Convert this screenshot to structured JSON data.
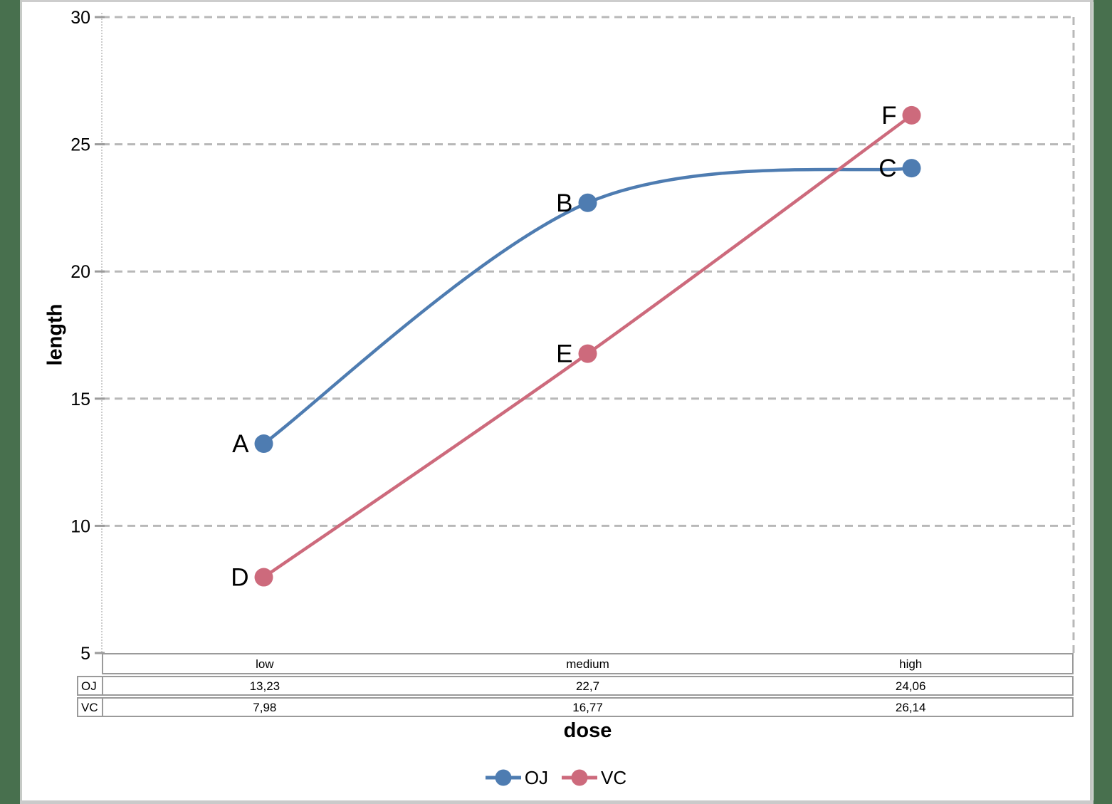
{
  "chart_data": {
    "type": "line",
    "categories": [
      "low",
      "medium",
      "high"
    ],
    "series": [
      {
        "name": "OJ",
        "values": [
          13.23,
          22.7,
          24.06
        ],
        "color": "#4e7cb1",
        "point_labels": [
          "A",
          "B",
          "C"
        ],
        "smooth": true
      },
      {
        "name": "VC",
        "values": [
          7.98,
          16.77,
          26.14
        ],
        "color": "#cd6a7c",
        "point_labels": [
          "D",
          "E",
          "F"
        ],
        "smooth": true
      }
    ],
    "xlabel": "dose",
    "ylabel": "length",
    "ylim": [
      5,
      30
    ],
    "yticks": [
      5,
      10,
      15,
      20,
      25,
      30
    ],
    "grid": "horizontal dashed",
    "legend_position": "bottom"
  },
  "axis": {
    "x_title": "dose",
    "y_title": "length"
  },
  "table": {
    "column_headers": [
      "low",
      "medium",
      "high"
    ],
    "row_labels": [
      "OJ",
      "VC"
    ],
    "rows": [
      [
        "13,23",
        "22,7",
        "24,06"
      ],
      [
        "7,98",
        "16,77",
        "26,14"
      ]
    ]
  },
  "legend": {
    "items": [
      {
        "label": "OJ",
        "color": "#4e7cb1"
      },
      {
        "label": "VC",
        "color": "#cd6a7c"
      }
    ]
  },
  "colors": {
    "oj_series": "#4e7cb1",
    "vc_series": "#cd6a7c",
    "gridline": "#b8b8b8",
    "axis_line": "#cccccc",
    "tick": "#9b9b9b",
    "table_border": "#9a9a9a",
    "page_edge_green": "#48704e",
    "frame_gray": "#cdcdcd",
    "text": "#000000"
  }
}
